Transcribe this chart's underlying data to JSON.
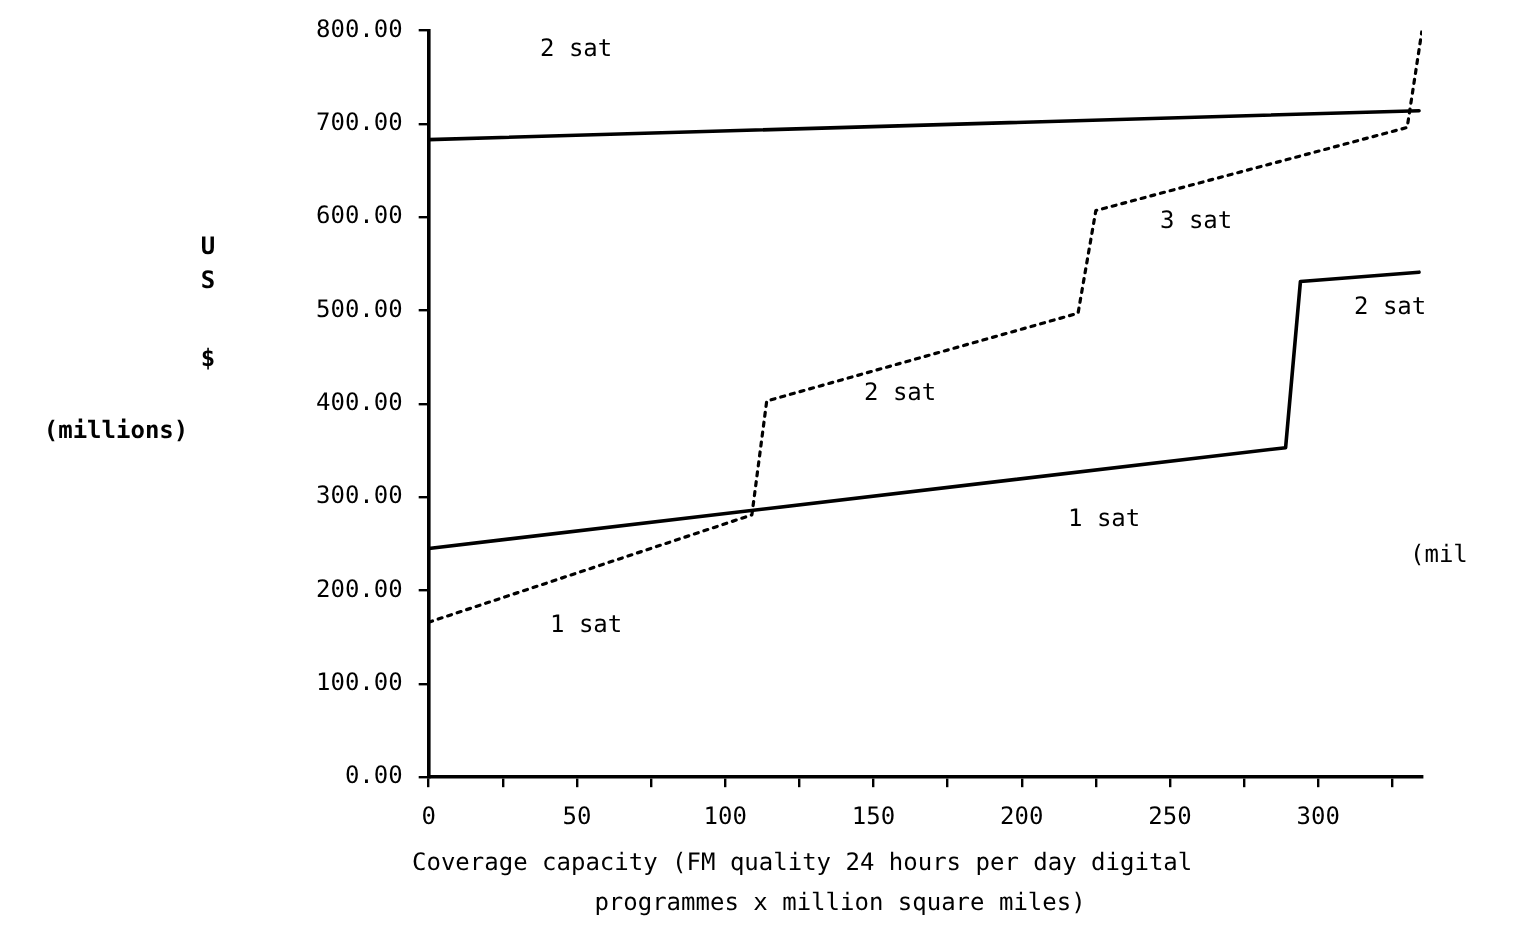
{
  "chart_data": {
    "type": "line",
    "xlabel": "Coverage capacity (FM quality 24 hours per day digital programmes x million square miles)",
    "ylabel": "U S $ (millions)",
    "series": [
      {
        "color": "#000000",
        "line_style": "solid",
        "x": [
          0,
          334
        ],
        "values": [
          683,
          714
        ]
      },
      {
        "color": "#000000",
        "line_style": "solid",
        "x": [
          0,
          289,
          294,
          334
        ],
        "values": [
          245,
          353,
          531,
          541
        ]
      },
      {
        "color": "#000000",
        "line_style": "dotted",
        "x": [
          0,
          109,
          114,
          219,
          225,
          330,
          335
        ],
        "values": [
          166,
          281,
          403,
          497,
          607,
          696,
          800
        ]
      }
    ],
    "xlim": [
      0,
      335
    ],
    "xticks": [
      0,
      {
        "value": 25,
        "label": null
      },
      50,
      {
        "value": 75,
        "label": null
      },
      100,
      {
        "value": 125,
        "label": null
      },
      150,
      {
        "value": 175,
        "label": null
      },
      200,
      {
        "value": 225,
        "label": null
      },
      250,
      {
        "value": 275,
        "label": null
      },
      300,
      {
        "value": 325,
        "label": null
      }
    ],
    "ylim": [
      0,
      800
    ],
    "yticks": [
      {
        "value": 0,
        "label": "0.00"
      },
      {
        "value": 100,
        "label": "100.00"
      },
      {
        "value": 200,
        "label": "200.00"
      },
      {
        "value": 300,
        "label": "300.00"
      },
      {
        "value": 400,
        "label": "400.00"
      },
      {
        "value": 500,
        "label": "500.00"
      },
      {
        "value": 600,
        "label": "600.00"
      },
      {
        "value": 700,
        "label": "700.00"
      },
      {
        "value": 800,
        "label": "800.00"
      }
    ],
    "annotations": [
      "2 sat",
      "3 sat",
      "2 sat",
      "2 sat",
      "1 sat",
      "1 sat",
      "(mil"
    ],
    "grid": false,
    "legend": false,
    "marker": "none"
  }
}
